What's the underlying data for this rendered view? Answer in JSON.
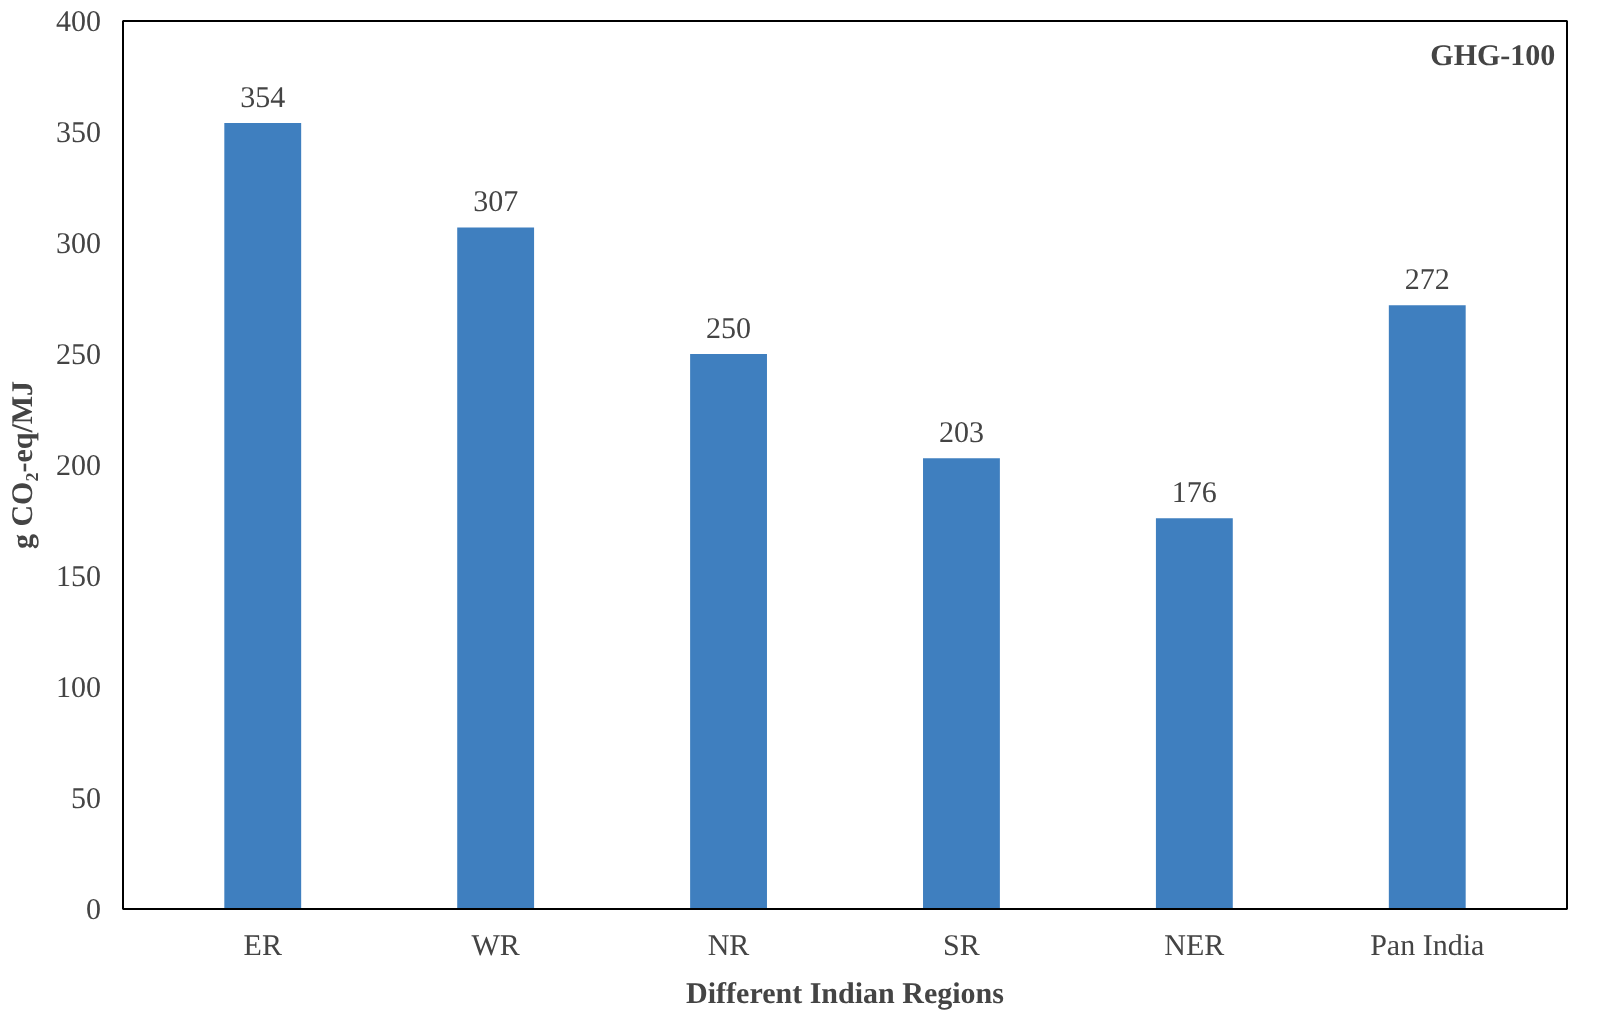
{
  "chart_data": {
    "type": "bar",
    "xlabel": "Different Indian Regions",
    "ylabel": "g CO₂-eq/MJ",
    "categories": [
      "ER",
      "WR",
      "NR",
      "SR",
      "NER",
      "Pan India"
    ],
    "values": [
      354,
      307,
      250,
      203,
      176,
      272
    ],
    "color": "#3f7fbf",
    "ylim": [
      0,
      400
    ],
    "yticks": [
      0,
      50,
      100,
      150,
      200,
      250,
      300,
      350,
      400
    ],
    "grid": false,
    "data_labels": true,
    "annotations": [
      "GHG-100"
    ]
  }
}
